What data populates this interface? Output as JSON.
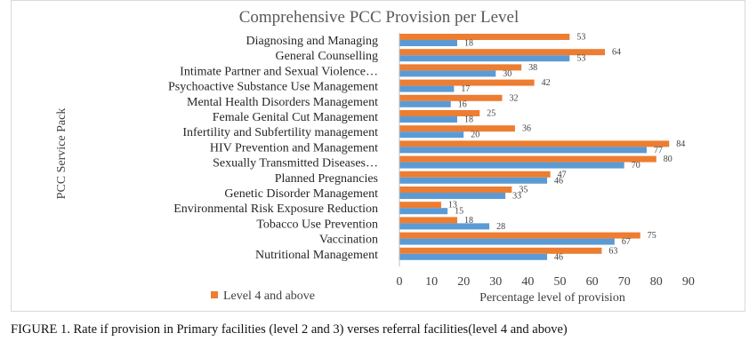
{
  "chart_data": {
    "type": "bar",
    "orientation": "horizontal",
    "title": "Comprehensive PCC Provision per Level",
    "xlabel": "Percentage level of provision",
    "ylabel": "PCC Service Pack",
    "xlim": [
      0,
      90
    ],
    "xticks": [
      0,
      10,
      20,
      30,
      40,
      50,
      60,
      70,
      80,
      90
    ],
    "grid": false,
    "legend": {
      "placement": "bottom-left"
    },
    "categories": [
      "Diagnosing and Managing",
      "General Counselling",
      "Intimate Partner and Sexual Violence…",
      "Psychoactive Substance Use Management",
      "Mental Health Disorders Management",
      "Female Genital Cut Management",
      "Infertility and Subfertility management",
      "HIV Prevention and Management",
      "Sexually Transmitted Diseases…",
      "Planned Pregnancies",
      "Genetic Disorder Management",
      "Environmental Risk Exposure Reduction",
      "Tobacco Use Prevention",
      "Vaccination",
      "Nutritional Management"
    ],
    "series": [
      {
        "name": "Level 4 and above",
        "color": "#ed7d31",
        "values": [
          53,
          64,
          38,
          42,
          32,
          25,
          36,
          84,
          80,
          47,
          35,
          13,
          18,
          75,
          63
        ]
      },
      {
        "color": "#5b9bd5",
        "values": [
          18,
          53,
          30,
          17,
          16,
          18,
          20,
          77,
          70,
          46,
          33,
          15,
          28,
          67,
          46
        ]
      }
    ]
  },
  "caption": "FIGURE 1. Rate if provision in Primary facilities (level 2 and 3) verses referral facilities(level 4 and above)"
}
